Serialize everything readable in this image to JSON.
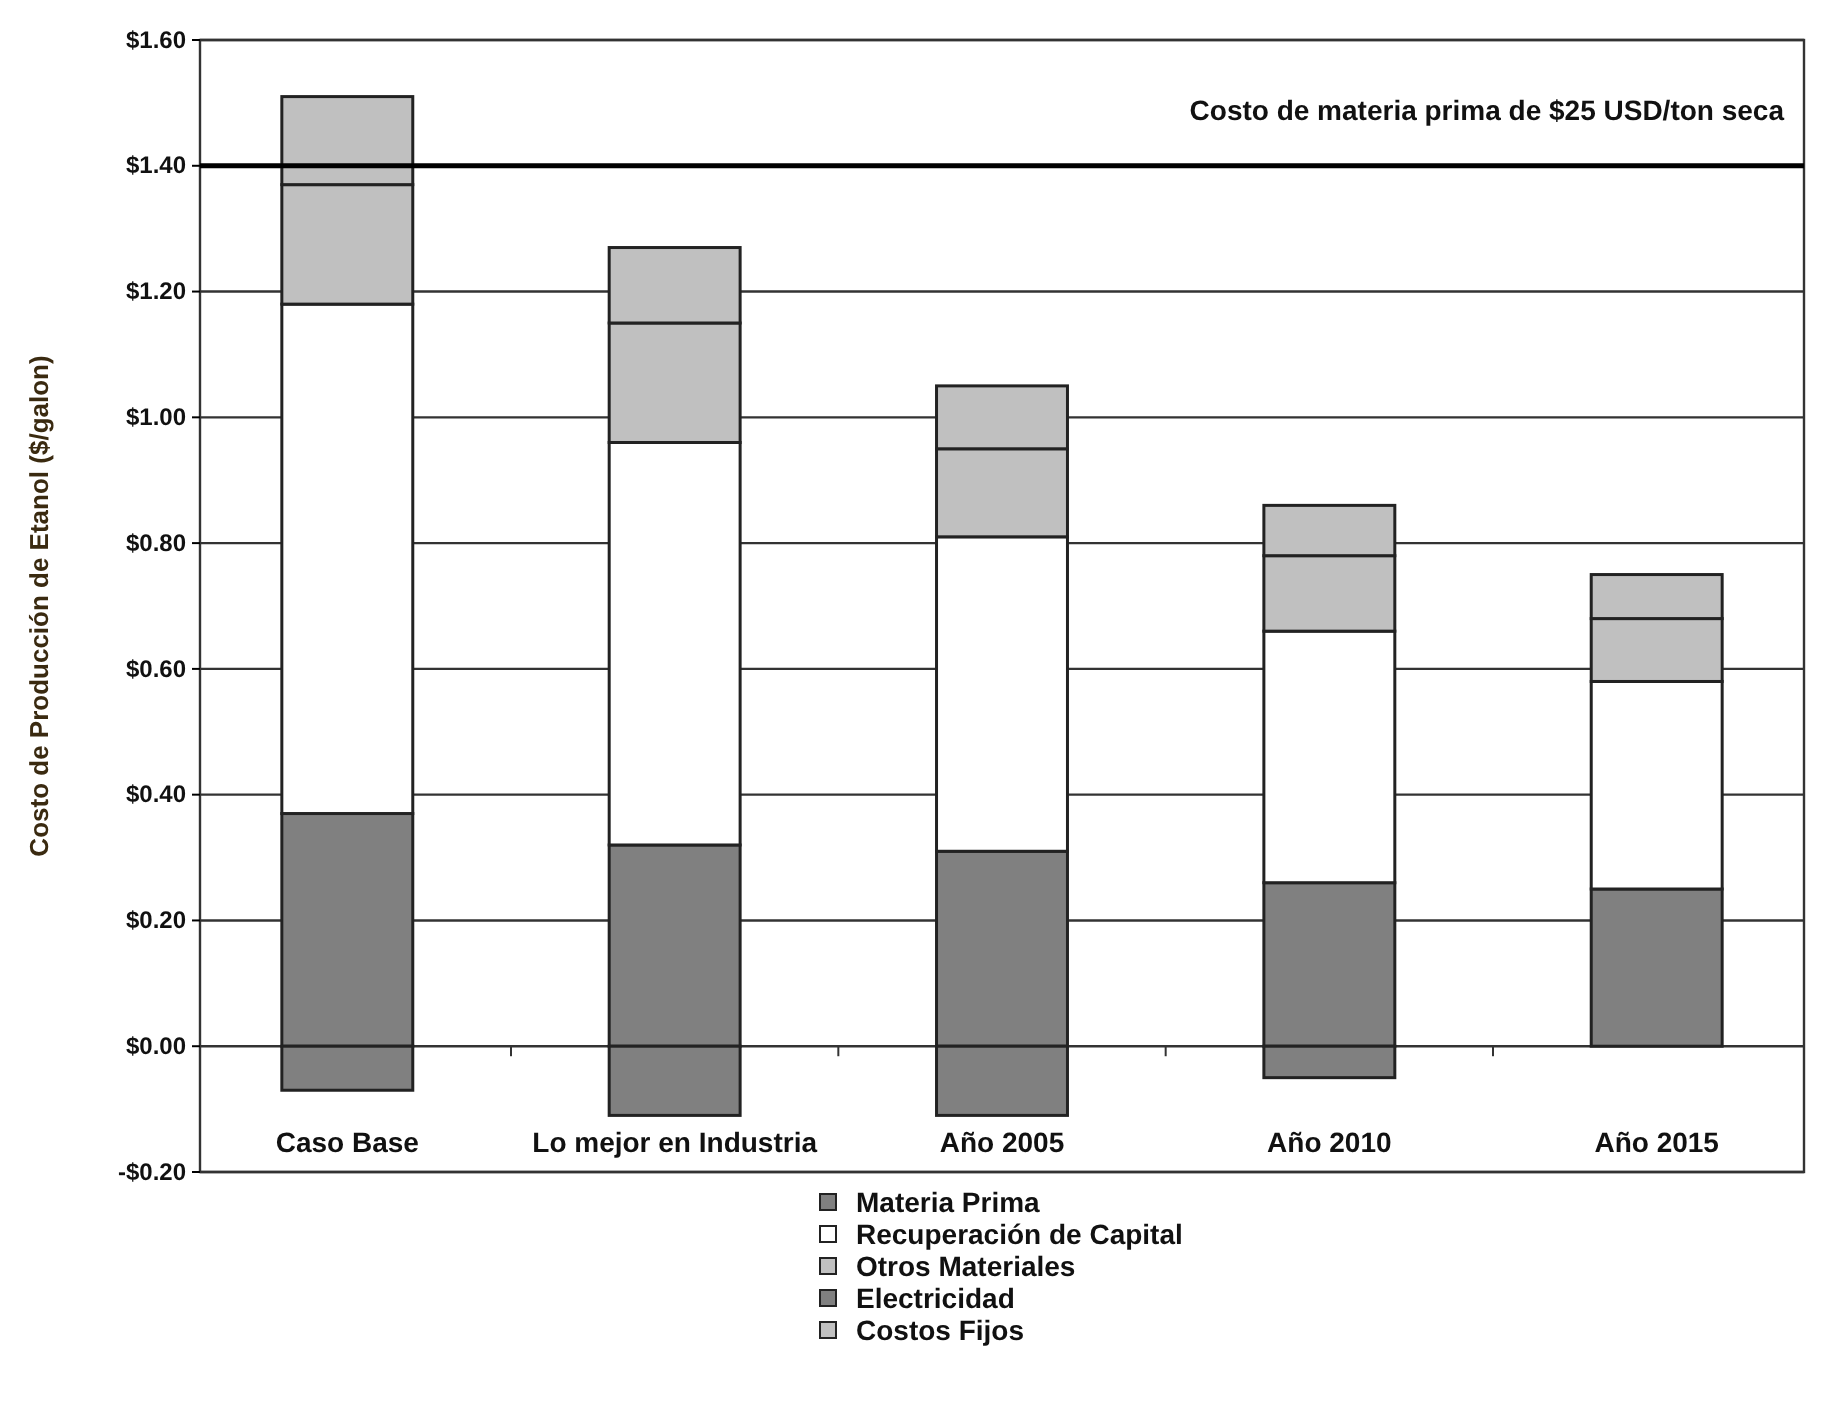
{
  "chart_data": {
    "type": "bar",
    "stacked": true,
    "ylabel": "Costo de Producción de Etanol ($/galon)",
    "categories": [
      "Caso Base",
      "Lo mejor en Industria",
      "Año 2005",
      "Año 2010",
      "Año 2015"
    ],
    "series": [
      {
        "name": "Materia Prima",
        "color": "#808080",
        "values": [
          0.37,
          0.32,
          0.31,
          0.26,
          0.25
        ]
      },
      {
        "name": "Recuperación de Capital",
        "color": "#ffffff",
        "values": [
          0.81,
          0.64,
          0.5,
          0.4,
          0.33
        ]
      },
      {
        "name": "Otros Materiales",
        "color": "#c0c0c0",
        "values": [
          0.19,
          0.19,
          0.14,
          0.12,
          0.1
        ]
      },
      {
        "name": "Electricidad",
        "color": "#808080",
        "values": [
          -0.07,
          -0.11,
          -0.11,
          -0.05,
          0
        ]
      },
      {
        "name": "Costos Fijos",
        "color": "#c0c0c0",
        "values": [
          0.14,
          0.12,
          0.1,
          0.08,
          0.07
        ]
      }
    ],
    "ylim": [
      -0.2,
      1.6
    ],
    "yticks": [
      {
        "value": -0.2,
        "label": "-$0.20"
      },
      {
        "value": 0,
        "label": "$0.00"
      },
      {
        "value": 0.2,
        "label": "$0.20"
      },
      {
        "value": 0.4,
        "label": "$0.40"
      },
      {
        "value": 0.6,
        "label": "$0.60"
      },
      {
        "value": 0.8,
        "label": "$0.80"
      },
      {
        "value": 1.0,
        "label": "$1.00"
      },
      {
        "value": 1.2,
        "label": "$1.20"
      },
      {
        "value": 1.4,
        "label": "$1.40"
      },
      {
        "value": 1.6,
        "label": "$1.60"
      }
    ],
    "grid": "y",
    "legend": "bottom",
    "ref_lines": [
      {
        "axis": "y",
        "value": 1.4,
        "label": "Costo de materia prima de $25 USD/ton seca",
        "color": "#000000"
      }
    ]
  }
}
